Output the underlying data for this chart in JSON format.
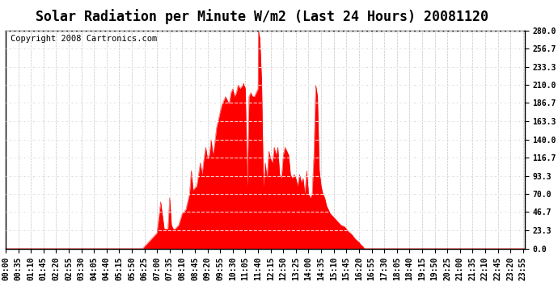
{
  "title": "Solar Radiation per Minute W/m2 (Last 24 Hours) 20081120",
  "copyright_text": "Copyright 2008 Cartronics.com",
  "fill_color": "#ff0000",
  "line_color": "#ff0000",
  "background_color": "#ffffff",
  "grid_color": "#aaaaaa",
  "dashed_hline_color": "#ffffff",
  "y_min": 0.0,
  "y_max": 280.0,
  "y_ticks": [
    0.0,
    23.3,
    46.7,
    70.0,
    93.3,
    116.7,
    140.0,
    163.3,
    186.7,
    210.0,
    233.3,
    256.7,
    280.0
  ],
  "num_minutes": 1440,
  "title_fontsize": 12,
  "tick_fontsize": 7,
  "copyright_fontsize": 7.5
}
